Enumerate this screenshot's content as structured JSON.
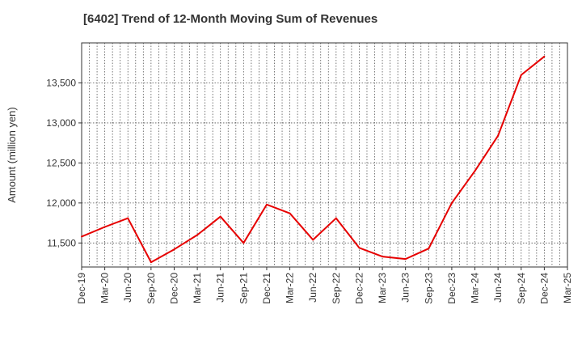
{
  "chart_data": {
    "type": "line",
    "title": "[6402]  Trend of 12-Month Moving Sum of Revenues",
    "xlabel": "",
    "ylabel": "Amount (million yen)",
    "categories": [
      "Dec-19",
      "Mar-20",
      "Jun-20",
      "Sep-20",
      "Dec-20",
      "Mar-21",
      "Jun-21",
      "Sep-21",
      "Dec-21",
      "Mar-22",
      "Jun-22",
      "Sep-22",
      "Dec-22",
      "Mar-23",
      "Jun-23",
      "Sep-23",
      "Dec-23",
      "Mar-24",
      "Jun-24",
      "Sep-24",
      "Dec-24",
      "Mar-25"
    ],
    "y_ticks": [
      "11,500",
      "12,000",
      "12,500",
      "13,000",
      "13,500"
    ],
    "y_tick_values": [
      11500,
      12000,
      12500,
      13000,
      13500
    ],
    "ylim": [
      11200,
      14000
    ],
    "grid": true,
    "series": [
      {
        "color": "#e60000",
        "values": [
          11580,
          11700,
          11810,
          11260,
          11420,
          11600,
          11830,
          11500,
          11980,
          11870,
          11540,
          11810,
          11440,
          11330,
          11300,
          11430,
          12000,
          12400,
          12840,
          13600,
          13830,
          null
        ]
      }
    ]
  }
}
